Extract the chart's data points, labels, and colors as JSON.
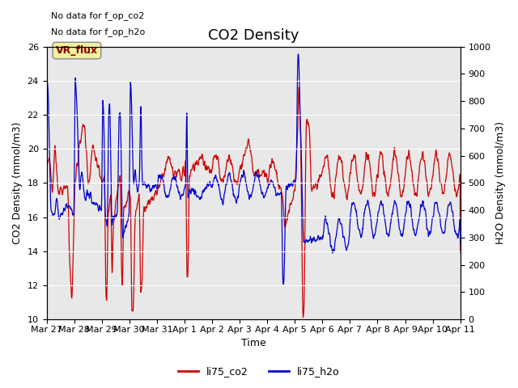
{
  "title": "CO2 Density",
  "xlabel": "Time",
  "ylabel_left": "CO2 Density (mmol/m3)",
  "ylabel_right": "H2O Density (mmol/m3)",
  "ylim_left": [
    10,
    26
  ],
  "ylim_right": [
    0,
    1000
  ],
  "yticks_left": [
    10,
    12,
    14,
    16,
    18,
    20,
    22,
    24,
    26
  ],
  "yticks_right": [
    0,
    100,
    200,
    300,
    400,
    500,
    600,
    700,
    800,
    900,
    1000
  ],
  "xtick_labels": [
    "Mar 27",
    "Mar 28",
    "Mar 29",
    "Mar 30",
    "Mar 31",
    "Apr 1",
    "Apr 2",
    "Apr 3",
    "Apr 4",
    "Apr 5",
    "Apr 6",
    "Apr 7",
    "Apr 8",
    "Apr 9",
    "Apr 10",
    "Apr 11"
  ],
  "color_co2": "#cc0000",
  "color_h2o": "#0000cc",
  "legend_co2": "li75_co2",
  "legend_h2o": "li75_h2o",
  "annotation_text1": "No data for f_op_co2",
  "annotation_text2": "No data for f_op_h2o",
  "vr_flux_label": "VR_flux",
  "background_color": "#e8e8e8",
  "fig_background": "#ffffff",
  "title_fontsize": 13,
  "axis_label_fontsize": 9,
  "tick_fontsize": 8
}
